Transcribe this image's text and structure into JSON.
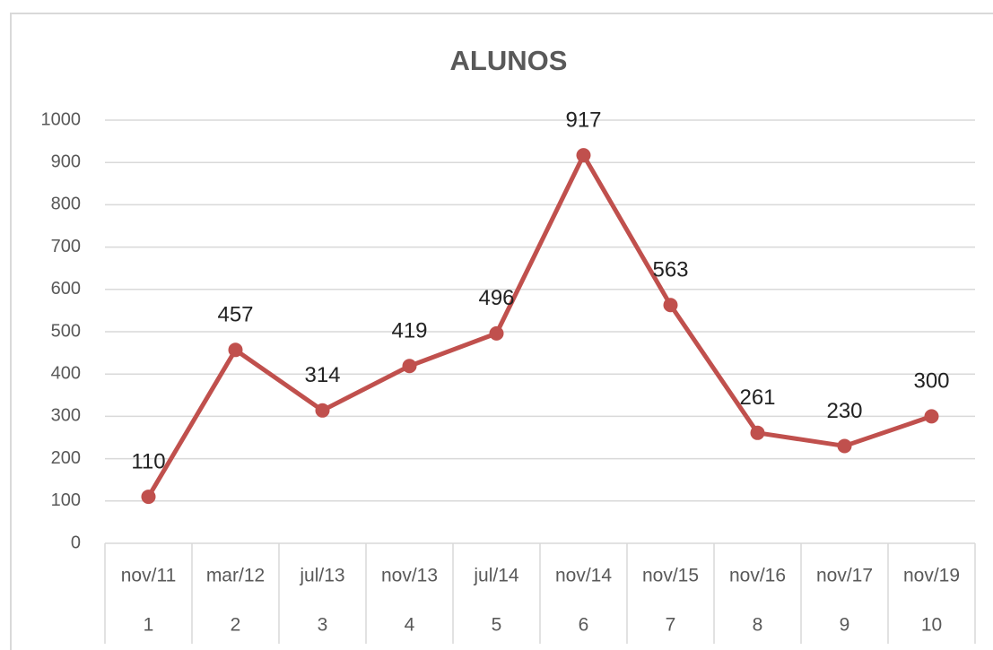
{
  "chart_data": {
    "type": "line",
    "title": "ALUNOS",
    "categories": [
      "nov/11",
      "mar/12",
      "jul/13",
      "nov/13",
      "jul/14",
      "nov/14",
      "nov/15",
      "nov/16",
      "nov/17",
      "nov/19"
    ],
    "category_index": [
      1,
      2,
      3,
      4,
      5,
      6,
      7,
      8,
      9,
      10
    ],
    "values": [
      110,
      457,
      314,
      419,
      496,
      917,
      563,
      261,
      230,
      300
    ],
    "color": "#c0504d",
    "ylim": [
      0,
      1000
    ],
    "yticks": [
      0,
      100,
      200,
      300,
      400,
      500,
      600,
      700,
      800,
      900,
      1000
    ],
    "grid": true,
    "data_labels": true
  }
}
